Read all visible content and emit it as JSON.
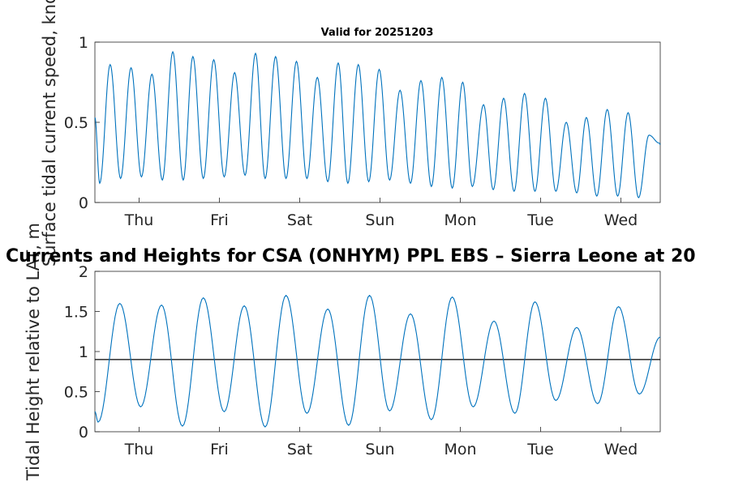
{
  "chart_data": [
    {
      "type": "line",
      "title": "Valid for 20251203",
      "ylabel": "Surface tidal current speed, knots",
      "xlabel": "",
      "ylim": [
        0,
        1
      ],
      "yticks": [
        "0",
        "0.5",
        "1"
      ],
      "xlim_days": [
        0,
        7.04
      ],
      "day_ticks": [
        {
          "day": 0.55,
          "label": "Thu"
        },
        {
          "day": 1.55,
          "label": "Fri"
        },
        {
          "day": 2.55,
          "label": "Sat"
        },
        {
          "day": 3.55,
          "label": "Sun"
        },
        {
          "day": 4.55,
          "label": "Mon"
        },
        {
          "day": 5.55,
          "label": "Tue"
        },
        {
          "day": 6.55,
          "label": "Wed"
        }
      ],
      "series": [
        {
          "name": "current speed",
          "color": "#0072BD",
          "x_days": [
            0.0,
            0.06,
            0.19,
            0.32,
            0.45,
            0.58,
            0.71,
            0.84,
            0.97,
            1.1,
            1.22,
            1.35,
            1.48,
            1.61,
            1.74,
            1.87,
            2.0,
            2.12,
            2.25,
            2.38,
            2.51,
            2.64,
            2.77,
            2.9,
            3.03,
            3.15,
            3.28,
            3.41,
            3.54,
            3.67,
            3.8,
            3.93,
            4.06,
            4.19,
            4.32,
            4.45,
            4.58,
            4.7,
            4.84,
            4.96,
            5.09,
            5.22,
            5.35,
            5.48,
            5.61,
            5.74,
            5.87,
            6.0,
            6.12,
            6.25,
            6.38,
            6.51,
            6.64,
            6.77,
            6.9,
            7.03,
            7.04
          ],
          "values": [
            0.53,
            0.12,
            0.86,
            0.15,
            0.84,
            0.16,
            0.8,
            0.14,
            0.94,
            0.14,
            0.91,
            0.15,
            0.89,
            0.16,
            0.81,
            0.17,
            0.93,
            0.15,
            0.91,
            0.15,
            0.88,
            0.15,
            0.78,
            0.13,
            0.87,
            0.12,
            0.86,
            0.13,
            0.83,
            0.14,
            0.7,
            0.12,
            0.76,
            0.1,
            0.78,
            0.09,
            0.75,
            0.1,
            0.61,
            0.08,
            0.65,
            0.07,
            0.68,
            0.07,
            0.65,
            0.07,
            0.5,
            0.06,
            0.53,
            0.04,
            0.58,
            0.04,
            0.56,
            0.03,
            0.42,
            0.37,
            0.36
          ]
        }
      ]
    },
    {
      "type": "line",
      "title": "Currents and Heights for CSA (ONHYM) PPL EBS  – Sierra Leone at 20",
      "ylabel": "Tidal Height relative to LAT, m",
      "xlabel": "",
      "ylim": [
        0,
        2
      ],
      "yticks": [
        "0",
        "0.5",
        "1",
        "1.5",
        "2"
      ],
      "xlim_days": [
        0,
        7.04
      ],
      "reference_line": {
        "value": 0.9,
        "color": "#000000"
      },
      "day_ticks": [
        {
          "day": 0.55,
          "label": "Thu"
        },
        {
          "day": 1.55,
          "label": "Fri"
        },
        {
          "day": 2.55,
          "label": "Sat"
        },
        {
          "day": 3.55,
          "label": "Sun"
        },
        {
          "day": 4.55,
          "label": "Mon"
        },
        {
          "day": 5.55,
          "label": "Tue"
        },
        {
          "day": 6.55,
          "label": "Wed"
        }
      ],
      "series": [
        {
          "name": "tidal height",
          "color": "#0072BD",
          "x_days": [
            0.0,
            0.04,
            0.31,
            0.57,
            0.83,
            1.09,
            1.35,
            1.61,
            1.86,
            2.12,
            2.38,
            2.64,
            2.9,
            3.16,
            3.42,
            3.67,
            3.93,
            4.19,
            4.45,
            4.71,
            4.97,
            5.23,
            5.48,
            5.74,
            6.0,
            6.26,
            6.52,
            6.78,
            7.04
          ],
          "values": [
            0.25,
            0.12,
            1.6,
            0.31,
            1.58,
            0.07,
            1.67,
            0.25,
            1.57,
            0.06,
            1.7,
            0.23,
            1.53,
            0.08,
            1.7,
            0.26,
            1.47,
            0.15,
            1.68,
            0.31,
            1.38,
            0.23,
            1.62,
            0.39,
            1.3,
            0.35,
            1.56,
            0.47,
            1.18
          ]
        }
      ]
    }
  ]
}
